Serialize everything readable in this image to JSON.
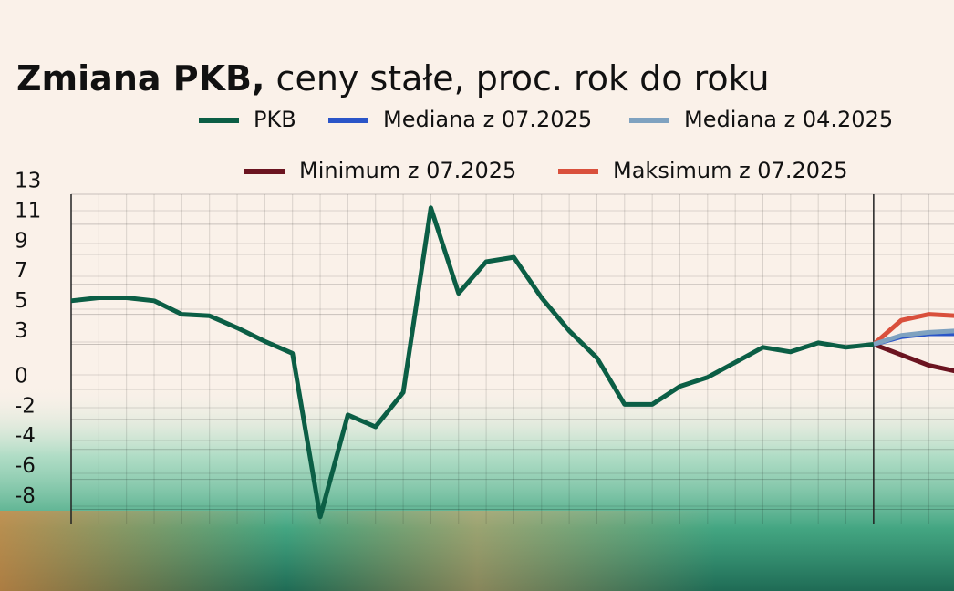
{
  "chart_data": {
    "type": "line",
    "title": "Zmiana PKB,",
    "subtitle": "ceny stałe, proc. rok do roku",
    "categories": [
      null,
      null,
      null,
      null,
      null,
      null,
      null,
      null,
      null,
      null,
      null,
      null,
      null,
      null,
      null,
      null,
      null,
      null,
      null,
      null,
      null,
      null,
      null,
      null,
      null,
      null,
      null,
      null,
      null,
      null,
      null,
      null,
      null
    ],
    "series": [
      {
        "name": "PKB",
        "color": "#0b5e45",
        "values": [
          5.9,
          6.1,
          6.1,
          5.9,
          5.0,
          4.9,
          4.1,
          3.2,
          2.4,
          -8.5,
          -1.7,
          -2.5,
          -0.2,
          12.1,
          6.4,
          8.5,
          8.8,
          6.1,
          3.9,
          2.1,
          -1.0,
          -1.0,
          0.2,
          0.8,
          1.8,
          2.8,
          2.5,
          3.1,
          2.8,
          3.0,
          null,
          null,
          null
        ]
      },
      {
        "name": "Mediana z 07.2025",
        "color": "#2a55c8",
        "values": [
          null,
          null,
          null,
          null,
          null,
          null,
          null,
          null,
          null,
          null,
          null,
          null,
          null,
          null,
          null,
          null,
          null,
          null,
          null,
          null,
          null,
          null,
          null,
          null,
          null,
          null,
          null,
          null,
          null,
          3.0,
          3.5,
          3.7,
          3.7
        ]
      },
      {
        "name": "Mediana z 04.2025",
        "color": "#7fa2c0",
        "values": [
          null,
          null,
          null,
          null,
          null,
          null,
          null,
          null,
          null,
          null,
          null,
          null,
          null,
          null,
          null,
          null,
          null,
          null,
          null,
          null,
          null,
          null,
          null,
          null,
          null,
          null,
          null,
          null,
          null,
          3.0,
          3.6,
          3.8,
          3.9
        ]
      },
      {
        "name": "Minimum z 07.2025",
        "color": "#6b1420",
        "values": [
          null,
          null,
          null,
          null,
          null,
          null,
          null,
          null,
          null,
          null,
          null,
          null,
          null,
          null,
          null,
          null,
          null,
          null,
          null,
          null,
          null,
          null,
          null,
          null,
          null,
          null,
          null,
          null,
          null,
          3.0,
          2.3,
          1.6,
          1.2
        ]
      },
      {
        "name": "Maksimum z 07.2025",
        "color": "#d9503c",
        "values": [
          null,
          null,
          null,
          null,
          null,
          null,
          null,
          null,
          null,
          null,
          null,
          null,
          null,
          null,
          null,
          null,
          null,
          null,
          null,
          null,
          null,
          null,
          null,
          null,
          null,
          null,
          null,
          null,
          null,
          3.0,
          4.6,
          5.0,
          4.9
        ]
      }
    ],
    "ylim": [
      -9,
      13
    ],
    "yticks": [
      13,
      11,
      9,
      7,
      5,
      3,
      0,
      -2,
      -4,
      -6,
      -8
    ],
    "grid": true
  }
}
